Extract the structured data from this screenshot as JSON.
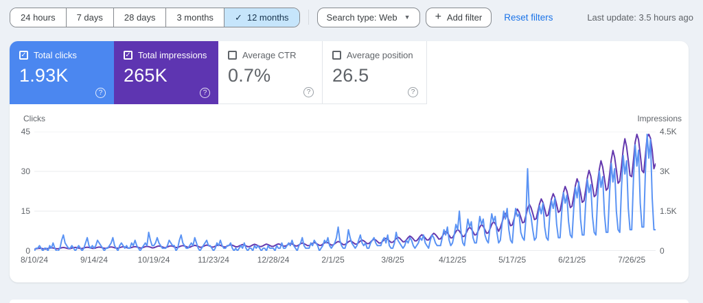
{
  "toolbar": {
    "date_ranges": [
      {
        "label": "24 hours",
        "selected": false
      },
      {
        "label": "7 days",
        "selected": false
      },
      {
        "label": "28 days",
        "selected": false
      },
      {
        "label": "3 months",
        "selected": false
      },
      {
        "label": "12 months",
        "selected": true
      }
    ],
    "search_type_label": "Search type: Web",
    "add_filter_label": "Add filter",
    "reset_filters_label": "Reset filters",
    "last_update": "Last update: 3.5 hours ago"
  },
  "metrics": [
    {
      "label": "Total clicks",
      "value": "1.93K",
      "checked": true,
      "color": "#4b87f0"
    },
    {
      "label": "Total impressions",
      "value": "265K",
      "checked": true,
      "color": "#5e35b1"
    },
    {
      "label": "Average CTR",
      "value": "0.7%",
      "checked": false
    },
    {
      "label": "Average position",
      "value": "26.5",
      "checked": false
    }
  ],
  "chart_data": {
    "type": "line",
    "grid": true,
    "days": 365,
    "left_axis": {
      "title": "Clicks",
      "ticks": [
        "45",
        "30",
        "15",
        "0"
      ],
      "max": 45
    },
    "right_axis": {
      "title": "Impressions",
      "ticks": [
        "4.5K",
        "3K",
        "1.5K",
        "0"
      ],
      "max": 4500
    },
    "x_labels": [
      "8/10/24",
      "9/14/24",
      "10/19/24",
      "11/23/24",
      "12/28/24",
      "2/1/25",
      "3/8/25",
      "4/12/25",
      "5/17/25",
      "6/21/25",
      "7/26/25"
    ],
    "x_label_days": [
      0,
      35,
      70,
      105,
      140,
      175,
      210,
      245,
      280,
      315,
      350
    ],
    "series": [
      {
        "name": "Total impressions",
        "axis": "right",
        "color": "#6337ad",
        "values": [
          60,
          80,
          90,
          100,
          95,
          85,
          70,
          70,
          90,
          110,
          120,
          110,
          95,
          80,
          80,
          100,
          120,
          130,
          120,
          100,
          85,
          85,
          105,
          125,
          135,
          125,
          105,
          90,
          90,
          110,
          130,
          140,
          130,
          110,
          95,
          95,
          115,
          135,
          145,
          135,
          115,
          100,
          100,
          120,
          140,
          150,
          140,
          120,
          105,
          100,
          125,
          145,
          155,
          145,
          125,
          105,
          110,
          130,
          150,
          160,
          150,
          130,
          110,
          115,
          135,
          160,
          170,
          160,
          140,
          115,
          120,
          145,
          170,
          185,
          170,
          150,
          125,
          125,
          150,
          175,
          190,
          175,
          155,
          130,
          130,
          160,
          185,
          200,
          185,
          160,
          135,
          135,
          165,
          190,
          210,
          195,
          170,
          140,
          140,
          170,
          200,
          220,
          205,
          175,
          145,
          145,
          175,
          205,
          225,
          210,
          180,
          150,
          150,
          180,
          210,
          230,
          215,
          185,
          155,
          155,
          185,
          215,
          240,
          220,
          190,
          160,
          160,
          190,
          225,
          250,
          230,
          200,
          165,
          165,
          195,
          230,
          255,
          235,
          205,
          170,
          170,
          205,
          240,
          265,
          245,
          215,
          180,
          180,
          215,
          255,
          280,
          260,
          225,
          190,
          190,
          225,
          270,
          295,
          275,
          240,
          200,
          200,
          240,
          285,
          315,
          290,
          250,
          210,
          210,
          255,
          300,
          330,
          305,
          265,
          220,
          225,
          270,
          320,
          355,
          330,
          285,
          235,
          240,
          290,
          345,
          380,
          355,
          305,
          255,
          260,
          310,
          370,
          410,
          380,
          330,
          275,
          280,
          335,
          400,
          440,
          410,
          355,
          295,
          300,
          360,
          430,
          475,
          440,
          380,
          320,
          325,
          390,
          465,
          515,
          480,
          415,
          345,
          350,
          420,
          505,
          560,
          520,
          450,
          375,
          380,
          460,
          550,
          610,
          565,
          490,
          410,
          415,
          500,
          600,
          665,
          615,
          535,
          445,
          455,
          550,
          660,
          730,
          680,
          590,
          490,
          500,
          610,
          730,
          810,
          750,
          650,
          540,
          555,
          675,
          810,
          895,
          830,
          720,
          600,
          615,
          750,
          900,
          995,
          925,
          800,
          665,
          685,
          835,
          1000,
          1105,
          1030,
          890,
          740,
          875,
          1070,
          1280,
          1415,
          1315,
          1140,
          950,
          980,
          1190,
          1425,
          1575,
          1465,
          1270,
          1060,
          1085,
          1330,
          1595,
          1760,
          1635,
          1415,
          1180,
          1215,
          1485,
          1775,
          1960,
          1825,
          1580,
          1315,
          1350,
          1640,
          1960,
          2160,
          2010,
          1745,
          1455,
          1510,
          1840,
          2200,
          2430,
          2260,
          1960,
          1635,
          1690,
          2060,
          2460,
          2720,
          2530,
          2195,
          1830,
          1890,
          2300,
          2760,
          3040,
          2830,
          2450,
          2045,
          2110,
          2570,
          3080,
          3400,
          3160,
          2740,
          2285,
          2360,
          2870,
          3440,
          3790,
          3530,
          3060,
          2550,
          2630,
          3200,
          3840,
          4230,
          3930,
          3410,
          2845,
          2800,
          3420,
          4100,
          4400,
          4200,
          3650,
          3040,
          2950,
          3600,
          4300,
          4400,
          4250,
          3800,
          3100,
          3300
        ]
      },
      {
        "name": "Total clicks",
        "axis": "left",
        "color": "#5a93f4",
        "values": [
          0,
          1,
          1,
          2,
          1,
          0,
          1,
          1,
          0,
          2,
          1,
          3,
          1,
          0,
          0,
          1,
          4,
          6,
          3,
          2,
          1,
          1,
          2,
          1,
          0,
          1,
          2,
          1,
          0,
          1,
          3,
          5,
          2,
          1,
          2,
          1,
          2,
          4,
          3,
          2,
          1,
          0,
          1,
          1,
          2,
          3,
          5,
          2,
          1,
          0,
          2,
          3,
          2,
          1,
          2,
          1,
          1,
          3,
          2,
          4,
          2,
          1,
          0,
          1,
          2,
          3,
          2,
          7,
          4,
          2,
          2,
          3,
          5,
          3,
          2,
          1,
          1,
          1,
          2,
          4,
          3,
          2,
          2,
          0,
          1,
          4,
          6,
          3,
          2,
          1,
          1,
          2,
          3,
          2,
          5,
          3,
          1,
          0,
          1,
          2,
          3,
          4,
          2,
          2,
          1,
          0,
          1,
          3,
          2,
          4,
          2,
          1,
          1,
          2,
          2,
          3,
          1,
          0,
          1,
          0,
          1,
          2,
          1,
          3,
          1,
          0,
          1,
          1,
          0,
          2,
          1,
          2,
          1,
          0,
          1,
          1,
          0,
          2,
          1,
          1,
          1,
          0,
          2,
          1,
          1,
          3,
          1,
          1,
          2,
          3,
          2,
          4,
          2,
          1,
          0,
          2,
          3,
          5,
          2,
          1,
          1,
          1,
          3,
          2,
          4,
          3,
          2,
          0,
          1,
          2,
          4,
          3,
          5,
          2,
          1,
          2,
          3,
          5,
          9,
          4,
          2,
          1,
          1,
          3,
          8,
          5,
          3,
          2,
          1,
          2,
          4,
          6,
          3,
          2,
          3,
          1,
          1,
          3,
          4,
          5,
          3,
          2,
          2,
          2,
          4,
          5,
          3,
          6,
          2,
          1,
          1,
          3,
          7,
          4,
          3,
          2,
          1,
          2,
          4,
          3,
          5,
          4,
          2,
          1,
          2,
          3,
          5,
          4,
          6,
          3,
          2,
          1,
          4,
          6,
          5,
          3,
          2,
          2,
          2,
          5,
          8,
          6,
          9,
          4,
          2,
          3,
          6,
          10,
          8,
          15,
          7,
          3,
          2,
          7,
          12,
          9,
          11,
          5,
          3,
          3,
          8,
          13,
          10,
          12,
          6,
          4,
          3,
          9,
          14,
          11,
          13,
          7,
          3,
          4,
          10,
          15,
          12,
          16,
          8,
          4,
          3,
          11,
          16,
          13,
          14,
          7,
          5,
          4,
          12,
          31,
          15,
          13,
          8,
          4,
          5,
          13,
          17,
          14,
          18,
          9,
          5,
          4,
          14,
          19,
          16,
          20,
          10,
          5,
          5,
          15,
          22,
          18,
          21,
          11,
          6,
          5,
          16,
          24,
          20,
          26,
          12,
          6,
          6,
          18,
          27,
          22,
          25,
          13,
          7,
          6,
          20,
          30,
          24,
          28,
          14,
          7,
          7,
          22,
          33,
          26,
          31,
          15,
          8,
          7,
          24,
          36,
          29,
          34,
          16,
          8,
          8,
          27,
          40,
          32,
          38,
          18,
          9,
          9,
          30,
          44,
          35,
          42,
          20,
          8,
          8
        ]
      }
    ]
  }
}
